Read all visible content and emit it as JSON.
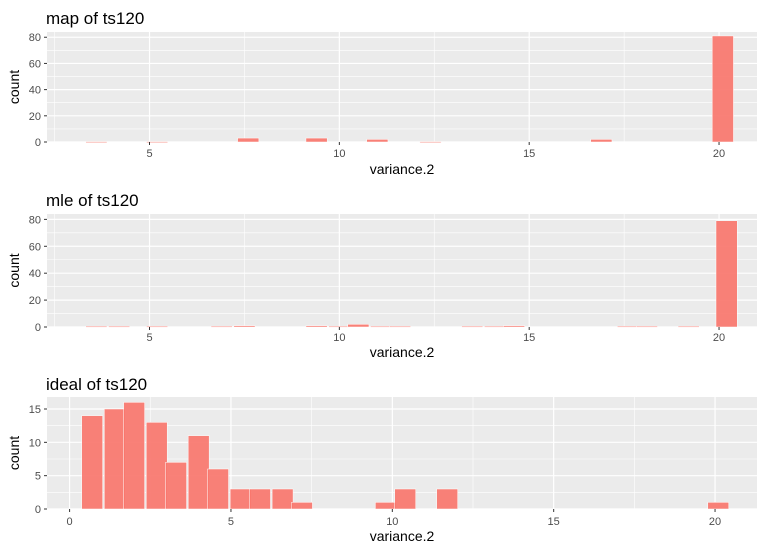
{
  "chart_data": [
    {
      "type": "bar",
      "title": "map of ts120",
      "xlabel": "variance.2",
      "ylabel": "count",
      "xlim": [
        2.3,
        21.0
      ],
      "ylim": [
        0,
        84
      ],
      "xticks": [
        5,
        10,
        15,
        20
      ],
      "yticks": [
        0,
        20,
        40,
        60,
        80
      ],
      "grid": true,
      "bin_width": 0.56,
      "bars": [
        {
          "x": 3.6,
          "count": 0.3
        },
        {
          "x": 5.2,
          "count": 0.3
        },
        {
          "x": 7.6,
          "count": 3
        },
        {
          "x": 9.4,
          "count": 3
        },
        {
          "x": 11.0,
          "count": 2
        },
        {
          "x": 12.4,
          "count": 0.3
        },
        {
          "x": 16.9,
          "count": 2
        },
        {
          "x": 20.1,
          "count": 81
        }
      ]
    },
    {
      "type": "bar",
      "title": "mle of ts120",
      "xlabel": "variance.2",
      "ylabel": "count",
      "xlim": [
        2.3,
        21.0
      ],
      "ylim": [
        0,
        84
      ],
      "xticks": [
        5,
        10,
        15,
        20
      ],
      "yticks": [
        0,
        20,
        40,
        60,
        80
      ],
      "grid": true,
      "bin_width": 0.56,
      "bars": [
        {
          "x": 3.6,
          "count": 0.5
        },
        {
          "x": 4.2,
          "count": 0.5
        },
        {
          "x": 5.2,
          "count": 0.5
        },
        {
          "x": 6.9,
          "count": 0.5
        },
        {
          "x": 7.5,
          "count": 1
        },
        {
          "x": 9.4,
          "count": 1
        },
        {
          "x": 10.0,
          "count": 0.5
        },
        {
          "x": 10.5,
          "count": 2
        },
        {
          "x": 11.1,
          "count": 0.5
        },
        {
          "x": 11.6,
          "count": 0.5
        },
        {
          "x": 13.5,
          "count": 0.5
        },
        {
          "x": 14.1,
          "count": 0.5
        },
        {
          "x": 14.6,
          "count": 1
        },
        {
          "x": 17.6,
          "count": 0.5
        },
        {
          "x": 18.1,
          "count": 0.5
        },
        {
          "x": 19.2,
          "count": 0.5
        },
        {
          "x": 20.2,
          "count": 79
        }
      ]
    },
    {
      "type": "bar",
      "title": "ideal of ts120",
      "xlabel": "variance.2",
      "ylabel": "count",
      "xlim": [
        -0.7,
        21.3
      ],
      "ylim": [
        0,
        16.8
      ],
      "xticks": [
        0,
        5,
        10,
        15,
        20
      ],
      "yticks": [
        0,
        5,
        10,
        15
      ],
      "grid": true,
      "bin_width": 0.65,
      "bars": [
        {
          "x": 0.7,
          "count": 14
        },
        {
          "x": 1.4,
          "count": 15
        },
        {
          "x": 2.0,
          "count": 16
        },
        {
          "x": 2.7,
          "count": 13
        },
        {
          "x": 3.3,
          "count": 7
        },
        {
          "x": 4.0,
          "count": 11
        },
        {
          "x": 4.6,
          "count": 6
        },
        {
          "x": 5.3,
          "count": 3
        },
        {
          "x": 5.9,
          "count": 3
        },
        {
          "x": 6.6,
          "count": 3
        },
        {
          "x": 7.2,
          "count": 1
        },
        {
          "x": 9.8,
          "count": 1
        },
        {
          "x": 10.4,
          "count": 3
        },
        {
          "x": 11.7,
          "count": 3
        },
        {
          "x": 20.1,
          "count": 1
        }
      ]
    }
  ],
  "colors": {
    "bar_fill": "#f8766d",
    "panel_bg": "#ebebeb",
    "grid": "#ffffff",
    "text": "#000000",
    "tick_text": "#4d4d4d"
  }
}
